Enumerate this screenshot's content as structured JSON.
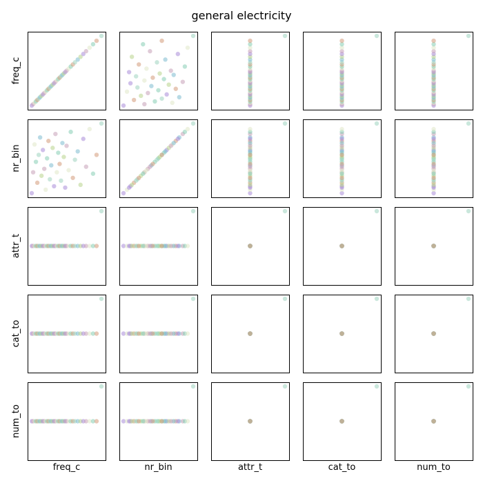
{
  "chart_data": {
    "type": "scatter",
    "title": "general electricity",
    "variables": [
      "freq_c",
      "nr_bin",
      "attr_t",
      "cat_to",
      "num_to"
    ],
    "ticks_shown": false,
    "palette": [
      "#a98cd9",
      "#c7a0b8",
      "#e0e8c8",
      "#87cdb4",
      "#d49a7a",
      "#9fd3c0",
      "#7dbcd0",
      "#b8d48c"
    ],
    "point_alpha": 0.55,
    "points": [
      [
        0.0,
        0.0,
        0.5,
        0.5,
        0.5
      ],
      [
        0.02,
        0.3,
        0.5,
        0.5,
        0.5
      ],
      [
        0.04,
        0.7,
        0.5,
        0.5,
        0.5
      ],
      [
        0.06,
        0.45,
        0.5,
        0.5,
        0.5
      ],
      [
        0.08,
        0.15,
        0.5,
        0.5,
        0.5
      ],
      [
        0.1,
        0.55,
        0.5,
        0.5,
        0.5
      ],
      [
        0.12,
        0.8,
        0.5,
        0.5,
        0.5
      ],
      [
        0.14,
        0.25,
        0.5,
        0.5,
        0.5
      ],
      [
        0.16,
        0.62,
        0.5,
        0.5,
        0.5
      ],
      [
        0.18,
        0.35,
        0.5,
        0.5,
        0.5
      ],
      [
        0.2,
        0.05,
        0.5,
        0.5,
        0.5
      ],
      [
        0.22,
        0.5,
        0.5,
        0.5,
        0.5
      ],
      [
        0.24,
        0.75,
        0.5,
        0.5,
        0.5
      ],
      [
        0.26,
        0.2,
        0.5,
        0.5,
        0.5
      ],
      [
        0.28,
        0.4,
        0.5,
        0.5,
        0.5
      ],
      [
        0.3,
        0.65,
        0.5,
        0.5,
        0.5
      ],
      [
        0.32,
        0.1,
        0.5,
        0.5,
        0.5
      ],
      [
        0.34,
        0.85,
        0.5,
        0.5,
        0.5
      ],
      [
        0.36,
        0.3,
        0.5,
        0.5,
        0.5
      ],
      [
        0.38,
        0.58,
        0.5,
        0.5,
        0.5
      ],
      [
        0.4,
        0.42,
        0.5,
        0.5,
        0.5
      ],
      [
        0.42,
        0.18,
        0.5,
        0.5,
        0.5
      ],
      [
        0.44,
        0.72,
        0.5,
        0.5,
        0.5
      ],
      [
        0.46,
        0.52,
        0.5,
        0.5,
        0.5
      ],
      [
        0.48,
        0.08,
        0.5,
        0.5,
        0.5
      ],
      [
        0.5,
        0.68,
        0.5,
        0.5,
        0.5
      ],
      [
        0.53,
        0.33,
        0.5,
        0.5,
        0.5
      ],
      [
        0.56,
        0.88,
        0.5,
        0.5,
        0.5
      ],
      [
        0.59,
        0.22,
        0.5,
        0.5,
        0.5
      ],
      [
        0.62,
        0.48,
        0.5,
        0.5,
        0.5
      ],
      [
        0.66,
        0.6,
        0.5,
        0.5,
        0.5
      ],
      [
        0.7,
        0.12,
        0.5,
        0.5,
        0.5
      ],
      [
        0.74,
        0.78,
        0.5,
        0.5,
        0.5
      ],
      [
        0.78,
        0.38,
        0.5,
        0.5,
        0.5
      ],
      [
        0.83,
        0.92,
        0.5,
        0.5,
        0.5
      ],
      [
        0.88,
        0.28,
        0.5,
        0.5,
        0.5
      ],
      [
        0.93,
        0.55,
        0.5,
        0.5,
        0.5
      ],
      [
        1.0,
        1.0,
        1.0,
        1.0,
        1.0
      ]
    ]
  }
}
